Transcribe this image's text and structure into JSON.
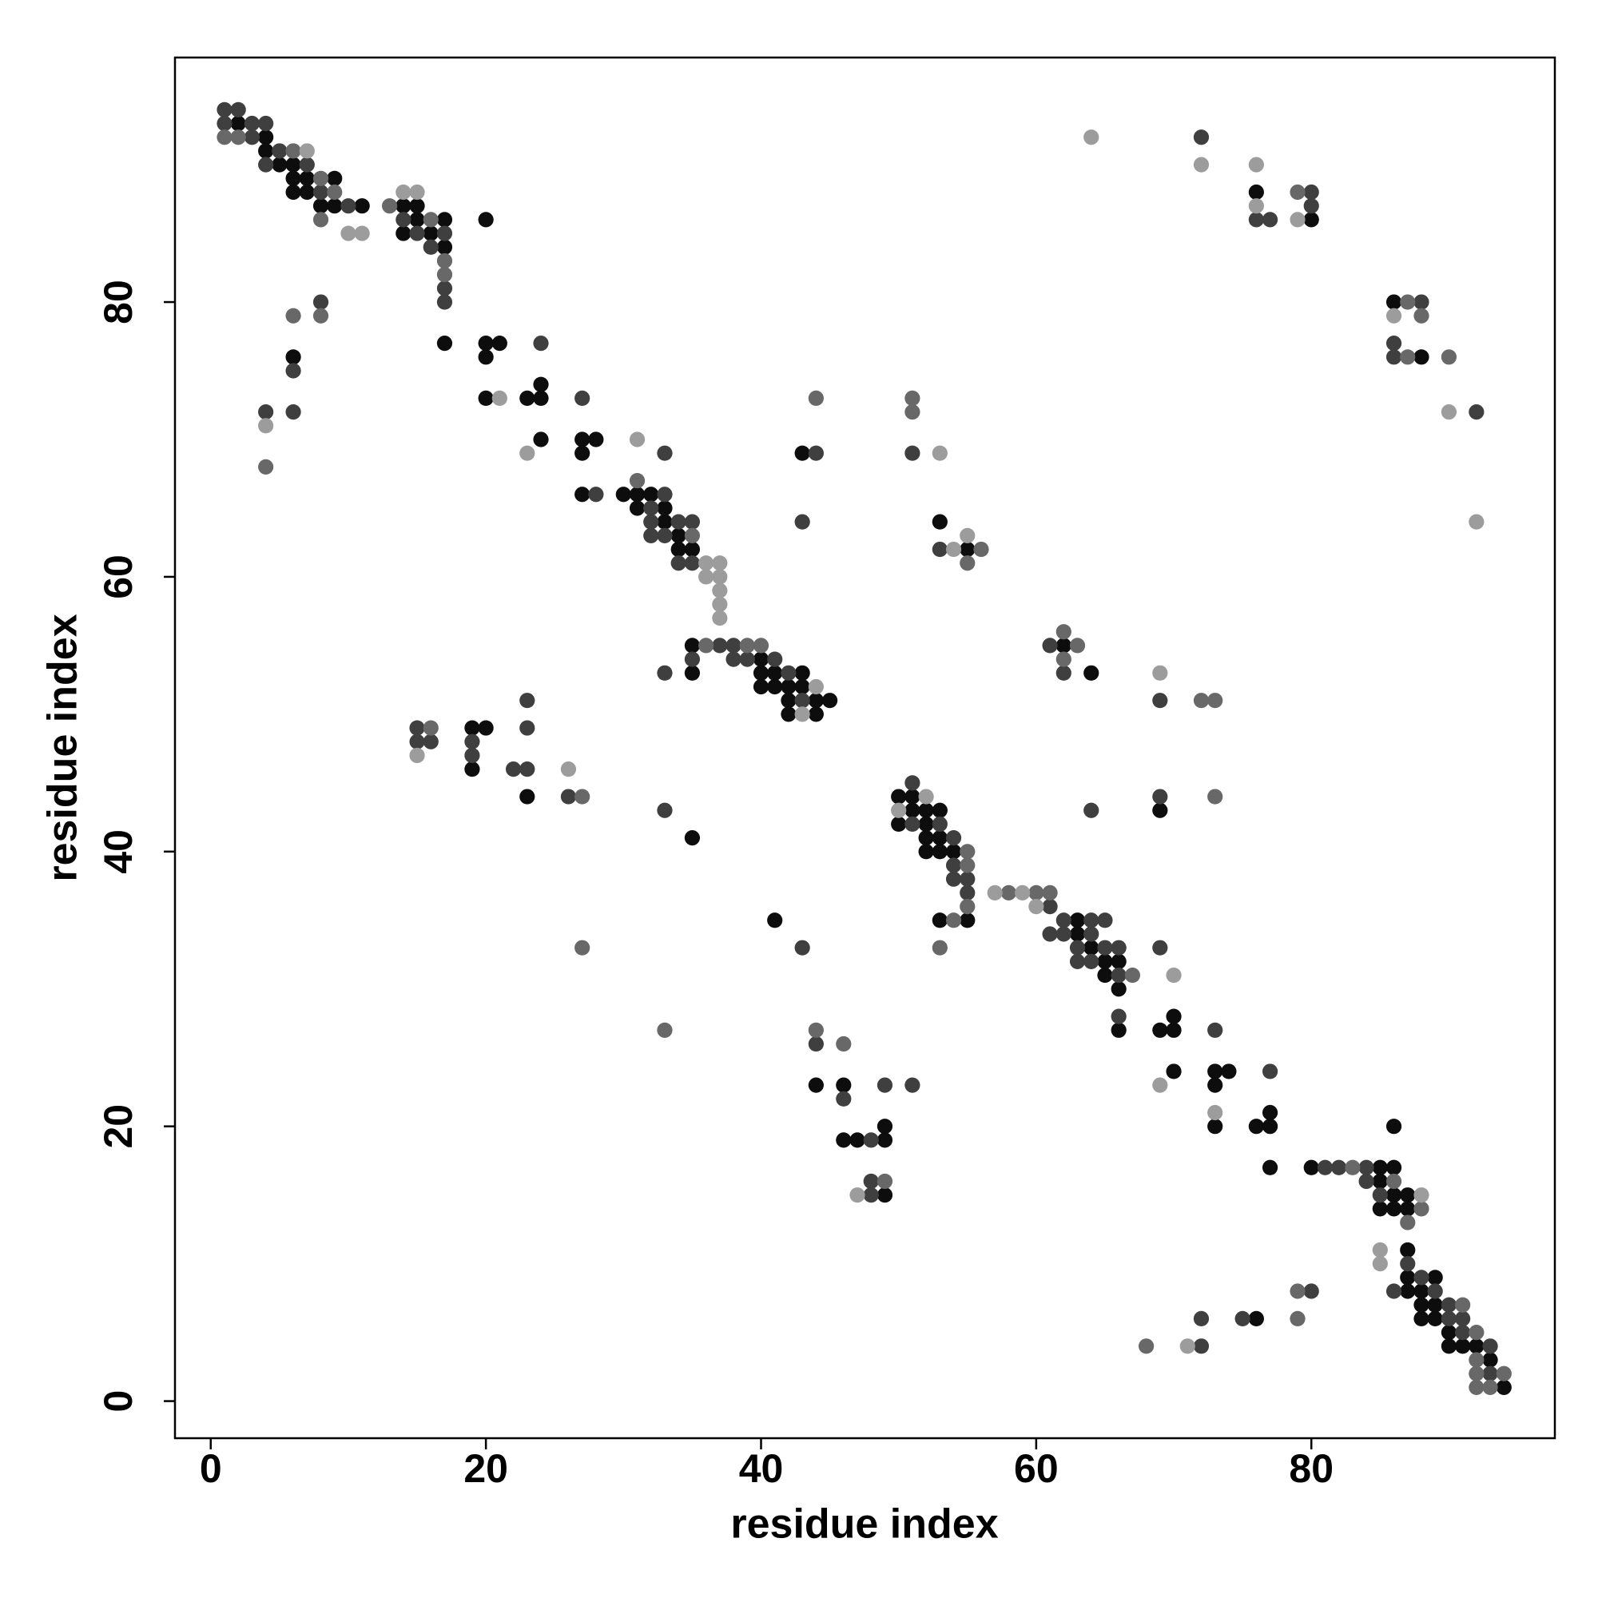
{
  "chart_data": {
    "type": "scatter",
    "x_label": "residue index",
    "y_label": "residue index",
    "xlim": [
      -2.6,
      97.7
    ],
    "ylim": [
      -2.7,
      97.8
    ],
    "xticks": [
      0,
      20,
      40,
      60,
      80
    ],
    "yticks": [
      0,
      20,
      40,
      60,
      80
    ],
    "series": [
      {
        "color": "#0d0d0d",
        "x": [
          2,
          4,
          4,
          5,
          6,
          6,
          7,
          9,
          6,
          7,
          8,
          9,
          11,
          14,
          15,
          15,
          17,
          20,
          80,
          76,
          14,
          16,
          17,
          86,
          17,
          20,
          21,
          6,
          20,
          88,
          24,
          20,
          23,
          24,
          24,
          27,
          28,
          27,
          43,
          27,
          30,
          31,
          32,
          31,
          33,
          33,
          53,
          34,
          34,
          35,
          55,
          35,
          62,
          40,
          35,
          40,
          41,
          43,
          64,
          40,
          41,
          42,
          43,
          42,
          44,
          45,
          42,
          44,
          19,
          20,
          19,
          23,
          50,
          51,
          51,
          52,
          53,
          69,
          50,
          52,
          35,
          52,
          53,
          52,
          53,
          54,
          41,
          53,
          55,
          63,
          63,
          64,
          65,
          66,
          65,
          66,
          70,
          66,
          69,
          70,
          70,
          73,
          74,
          44,
          46,
          73,
          77,
          49,
          73,
          76,
          77,
          86,
          46,
          47,
          49,
          77,
          80,
          85,
          86,
          85,
          49,
          86,
          87,
          85,
          86,
          87,
          87,
          87,
          89,
          87,
          88,
          88,
          89,
          76,
          88,
          89,
          90,
          90,
          91,
          92,
          93,
          94
        ],
        "y": [
          93,
          92,
          91,
          90,
          90,
          89,
          89,
          89,
          88,
          88,
          87,
          87,
          87,
          87,
          87,
          86,
          86,
          86,
          86,
          88,
          85,
          85,
          84,
          80,
          77,
          77,
          77,
          76,
          76,
          76,
          74,
          73,
          73,
          73,
          70,
          70,
          70,
          69,
          69,
          66,
          66,
          66,
          66,
          65,
          65,
          64,
          64,
          63,
          62,
          62,
          62,
          55,
          55,
          54,
          53,
          53,
          53,
          53,
          53,
          52,
          52,
          52,
          52,
          51,
          51,
          51,
          50,
          50,
          49,
          49,
          46,
          44,
          44,
          44,
          43,
          43,
          43,
          43,
          42,
          42,
          41,
          41,
          41,
          40,
          40,
          40,
          35,
          35,
          35,
          35,
          34,
          33,
          32,
          32,
          31,
          30,
          28,
          27,
          27,
          27,
          24,
          24,
          24,
          23,
          23,
          23,
          21,
          20,
          20,
          20,
          20,
          20,
          19,
          19,
          19,
          17,
          17,
          17,
          17,
          16,
          15,
          15,
          15,
          14,
          14,
          14,
          11,
          9,
          9,
          8,
          8,
          7,
          7,
          6,
          6,
          6,
          5,
          4,
          4,
          4,
          3,
          1
        ]
      },
      {
        "color": "#3f3f3f",
        "x": [
          1,
          2,
          1,
          3,
          4,
          3,
          72,
          5,
          4,
          7,
          8,
          80,
          10,
          80,
          14,
          76,
          77,
          15,
          17,
          16,
          17,
          17,
          8,
          88,
          24,
          86,
          86,
          6,
          27,
          4,
          6,
          92,
          33,
          44,
          51,
          28,
          33,
          32,
          32,
          34,
          35,
          43,
          32,
          33,
          53,
          34,
          35,
          37,
          38,
          61,
          35,
          38,
          39,
          41,
          33,
          42,
          62,
          23,
          43,
          69,
          15,
          23,
          15,
          16,
          19,
          19,
          22,
          23,
          51,
          26,
          69,
          33,
          64,
          51,
          53,
          54,
          54,
          54,
          55,
          55,
          61,
          62,
          64,
          65,
          61,
          62,
          64,
          43,
          63,
          65,
          66,
          69,
          63,
          64,
          66,
          66,
          73,
          44,
          77,
          49,
          51,
          46,
          48,
          81,
          82,
          84,
          48,
          84,
          48,
          85,
          87,
          88,
          80,
          86,
          89,
          90,
          72,
          75,
          90,
          91,
          91,
          72,
          93,
          93
        ],
        "y": [
          94,
          94,
          93,
          93,
          93,
          92,
          92,
          91,
          90,
          90,
          88,
          88,
          87,
          87,
          86,
          86,
          86,
          85,
          85,
          84,
          81,
          80,
          80,
          80,
          77,
          77,
          76,
          75,
          73,
          72,
          72,
          72,
          69,
          69,
          69,
          66,
          66,
          65,
          64,
          64,
          64,
          64,
          63,
          63,
          62,
          61,
          61,
          55,
          55,
          55,
          54,
          54,
          54,
          54,
          53,
          53,
          53,
          51,
          51,
          51,
          49,
          49,
          48,
          48,
          48,
          47,
          46,
          46,
          45,
          44,
          44,
          43,
          43,
          42,
          42,
          41,
          39,
          38,
          38,
          37,
          36,
          35,
          35,
          35,
          34,
          34,
          34,
          33,
          33,
          33,
          33,
          33,
          32,
          32,
          31,
          28,
          27,
          26,
          24,
          23,
          23,
          22,
          19,
          17,
          17,
          17,
          16,
          16,
          15,
          15,
          10,
          9,
          8,
          8,
          8,
          7,
          6,
          6,
          6,
          6,
          5,
          4,
          4,
          2
        ]
      },
      {
        "color": "#686868",
        "x": [
          1,
          2,
          6,
          8,
          9,
          79,
          13,
          8,
          16,
          17,
          17,
          87,
          6,
          8,
          88,
          87,
          90,
          44,
          51,
          51,
          31,
          35,
          56,
          55,
          36,
          39,
          40,
          63,
          62,
          62,
          72,
          73,
          16,
          27,
          73,
          55,
          55,
          58,
          60,
          61,
          54,
          55,
          27,
          53,
          67,
          33,
          44,
          46,
          83,
          49,
          86,
          88,
          87,
          79,
          91,
          79,
          92,
          68,
          92,
          92,
          94,
          92,
          93,
          4
        ],
        "y": [
          92,
          92,
          91,
          89,
          88,
          88,
          87,
          86,
          86,
          83,
          82,
          80,
          79,
          79,
          79,
          76,
          76,
          73,
          73,
          72,
          67,
          63,
          62,
          61,
          55,
          55,
          55,
          55,
          56,
          54,
          51,
          51,
          49,
          44,
          44,
          40,
          39,
          37,
          37,
          37,
          35,
          36,
          33,
          33,
          31,
          27,
          27,
          26,
          17,
          16,
          16,
          14,
          13,
          8,
          7,
          6,
          5,
          4,
          3,
          2,
          2,
          1,
          1,
          68
        ]
      },
      {
        "color": "#9c9c9c",
        "x": [
          7,
          64,
          72,
          76,
          14,
          15,
          76,
          79,
          10,
          11,
          86,
          4,
          21,
          90,
          31,
          23,
          53,
          92,
          55,
          54,
          36,
          37,
          36,
          37,
          37,
          37,
          37,
          69,
          44,
          43,
          15,
          26,
          52,
          50,
          57,
          59,
          60,
          70,
          69,
          73,
          47,
          88,
          85,
          85,
          71
        ],
        "y": [
          91,
          92,
          90,
          90,
          88,
          88,
          87,
          86,
          85,
          85,
          79,
          71,
          73,
          72,
          70,
          69,
          69,
          64,
          63,
          62,
          61,
          61,
          60,
          60,
          59,
          58,
          57,
          53,
          52,
          50,
          47,
          46,
          44,
          43,
          37,
          37,
          36,
          31,
          23,
          21,
          15,
          15,
          11,
          10,
          4
        ]
      }
    ]
  }
}
